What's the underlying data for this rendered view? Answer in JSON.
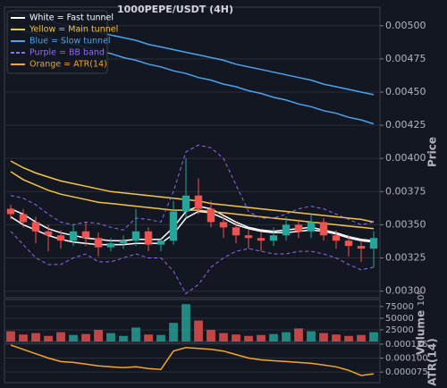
{
  "chart_data": [
    {
      "type": "candlestick",
      "title": "1000PEPE/USDT (4H)",
      "y_label": "Price",
      "ylim": [
        0.00295,
        0.00514
      ],
      "yticks": [
        {
          "value": 0.003,
          "label": "0.00300"
        },
        {
          "value": 0.00325,
          "label": "0.00325"
        },
        {
          "value": 0.0035,
          "label": "0.00350"
        },
        {
          "value": 0.00375,
          "label": "0.00375"
        },
        {
          "value": 0.004,
          "label": "0.00400"
        },
        {
          "value": 0.00425,
          "label": "0.00425"
        },
        {
          "value": 0.0045,
          "label": "0.00450"
        },
        {
          "value": 0.00475,
          "label": "0.00475"
        },
        {
          "value": 0.005,
          "label": "0.00500"
        }
      ],
      "grid": true,
      "up_color": "#26a69a",
      "down_color": "#ef5350",
      "legend": "upper left",
      "open": [
        0.00362,
        0.00358,
        0.00352,
        0.00345,
        0.00342,
        0.00338,
        0.00345,
        0.0034,
        0.00333,
        0.00336,
        0.00338,
        0.00345,
        0.00335,
        0.00338,
        0.0036,
        0.00372,
        0.00362,
        0.00352,
        0.00348,
        0.00342,
        0.0034,
        0.00338,
        0.00342,
        0.0035,
        0.00345,
        0.00352,
        0.00342,
        0.00338,
        0.00334,
        0.00332
      ],
      "high": [
        0.00365,
        0.00362,
        0.00356,
        0.0035,
        0.00346,
        0.0035,
        0.00352,
        0.00344,
        0.0034,
        0.00342,
        0.00362,
        0.00348,
        0.0034,
        0.00368,
        0.004,
        0.00385,
        0.00368,
        0.00356,
        0.00352,
        0.00346,
        0.00344,
        0.00348,
        0.00356,
        0.00354,
        0.00358,
        0.00355,
        0.00346,
        0.00342,
        0.00338,
        0.00345
      ],
      "low": [
        0.00354,
        0.00348,
        0.00336,
        0.0033,
        0.00332,
        0.00334,
        0.00334,
        0.00326,
        0.0033,
        0.00332,
        0.00334,
        0.0033,
        0.0033,
        0.00335,
        0.00355,
        0.00358,
        0.00348,
        0.0034,
        0.00336,
        0.00332,
        0.0033,
        0.00334,
        0.00338,
        0.0034,
        0.0034,
        0.00338,
        0.00332,
        0.00326,
        0.00322,
        0.00318
      ],
      "close": [
        0.00358,
        0.00352,
        0.00345,
        0.00342,
        0.00338,
        0.00345,
        0.0034,
        0.00333,
        0.00336,
        0.00338,
        0.00345,
        0.00335,
        0.00338,
        0.0036,
        0.00372,
        0.00362,
        0.00352,
        0.00348,
        0.00342,
        0.0034,
        0.00338,
        0.00342,
        0.0035,
        0.00345,
        0.00352,
        0.00342,
        0.00338,
        0.00334,
        0.00332,
        0.0034
      ],
      "series": [
        {
          "name": "White = Fast tunnel",
          "color": "#ffffff",
          "dashed": false,
          "upper": [
            0.00362,
            0.00358,
            0.00352,
            0.00347,
            0.00344,
            0.00342,
            0.0034,
            0.00339,
            0.00338,
            0.00338,
            0.00339,
            0.00339,
            0.00339,
            0.00348,
            0.0036,
            0.00364,
            0.00362,
            0.00357,
            0.00352,
            0.00348,
            0.00346,
            0.00345,
            0.00346,
            0.00347,
            0.00348,
            0.00346,
            0.00344,
            0.00341,
            0.00339,
            0.00338
          ],
          "lower": [
            0.00356,
            0.0035,
            0.00346,
            0.00342,
            0.00339,
            0.00337,
            0.00336,
            0.00335,
            0.00335,
            0.00335,
            0.00336,
            0.00336,
            0.00336,
            0.00343,
            0.00355,
            0.0036,
            0.00359,
            0.00355,
            0.0035,
            0.00347,
            0.00345,
            0.00344,
            0.00344,
            0.00345,
            0.00346,
            0.00345,
            0.00343,
            0.0034,
            0.00338,
            0.00337
          ]
        },
        {
          "name": "Yellow = Main tunnel",
          "color": "#f5c542",
          "dashed": false,
          "upper": [
            0.00398,
            0.00393,
            0.00389,
            0.00386,
            0.00383,
            0.00381,
            0.00379,
            0.00377,
            0.00375,
            0.00374,
            0.00373,
            0.00372,
            0.00371,
            0.0037,
            0.00369,
            0.00368,
            0.00366,
            0.00365,
            0.00364,
            0.00363,
            0.00362,
            0.00361,
            0.0036,
            0.00359,
            0.00358,
            0.00357,
            0.00356,
            0.00355,
            0.00354,
            0.00352
          ],
          "lower": [
            0.0039,
            0.00384,
            0.0038,
            0.00376,
            0.00373,
            0.00371,
            0.00369,
            0.00367,
            0.00366,
            0.00365,
            0.00364,
            0.00363,
            0.00362,
            0.00361,
            0.00361,
            0.00361,
            0.0036,
            0.00359,
            0.00358,
            0.00357,
            0.00356,
            0.00355,
            0.00354,
            0.00353,
            0.00352,
            0.00351,
            0.0035,
            0.00349,
            0.00348,
            0.00347
          ]
        },
        {
          "name": "Blue = Slow tunnel",
          "color": "#4aa3f0",
          "dashed": false,
          "upper": [
            0.0051,
            0.00508,
            0.00506,
            0.00504,
            0.00501,
            0.00499,
            0.00497,
            0.00495,
            0.00493,
            0.00491,
            0.00489,
            0.00486,
            0.00484,
            0.00482,
            0.0048,
            0.00478,
            0.00476,
            0.00474,
            0.00471,
            0.00469,
            0.00467,
            0.00465,
            0.00463,
            0.00461,
            0.00459,
            0.00456,
            0.00454,
            0.00452,
            0.0045,
            0.00448
          ],
          "lower": [
            0.00499,
            0.00496,
            0.00494,
            0.00491,
            0.00489,
            0.00486,
            0.00484,
            0.00481,
            0.00479,
            0.00476,
            0.00474,
            0.00471,
            0.00469,
            0.00466,
            0.00464,
            0.00461,
            0.00459,
            0.00456,
            0.00454,
            0.00451,
            0.00449,
            0.00446,
            0.00444,
            0.00441,
            0.00439,
            0.00436,
            0.00434,
            0.00431,
            0.00429,
            0.00426
          ]
        },
        {
          "name": "Purple = BB band",
          "color": "#8f6cf0",
          "dashed": true,
          "upper": [
            0.00372,
            0.0037,
            0.00365,
            0.00358,
            0.00352,
            0.0035,
            0.00352,
            0.00351,
            0.00348,
            0.00346,
            0.00355,
            0.00354,
            0.00352,
            0.00375,
            0.00405,
            0.0041,
            0.00408,
            0.004,
            0.0038,
            0.0036,
            0.00355,
            0.00355,
            0.00358,
            0.00362,
            0.00364,
            0.00362,
            0.00358,
            0.00354,
            0.0035,
            0.00352
          ],
          "lower": [
            0.00345,
            0.00335,
            0.00325,
            0.0032,
            0.0032,
            0.00325,
            0.00328,
            0.00322,
            0.00322,
            0.00325,
            0.00328,
            0.00325,
            0.00325,
            0.00315,
            0.00298,
            0.00305,
            0.00318,
            0.00325,
            0.0033,
            0.00332,
            0.0033,
            0.00328,
            0.00328,
            0.0033,
            0.0033,
            0.00328,
            0.00325,
            0.0032,
            0.00316,
            0.00318
          ]
        },
        {
          "name": "Orange = ATR(14)",
          "color": "#f5a623",
          "dashed": false
        }
      ]
    },
    {
      "type": "bar",
      "y_label": "Volume",
      "offset_label": "10⁶",
      "ylim": [
        0,
        90000
      ],
      "yticks": [
        25000,
        50000,
        75000
      ],
      "grid": true,
      "values": [
        22000,
        15000,
        18000,
        12000,
        20000,
        14000,
        16000,
        25000,
        18000,
        12000,
        30000,
        15000,
        14000,
        40000,
        80000,
        45000,
        25000,
        18000,
        15000,
        12000,
        14000,
        16000,
        20000,
        28000,
        22000,
        18000,
        15000,
        12000,
        14000,
        20000
      ]
    },
    {
      "type": "line",
      "y_label": "ATR(14)",
      "color": "#f5a623",
      "ylim": [
        5.6e-05,
        0.0001265
      ],
      "yticks": [
        {
          "value": 7.5e-05,
          "label": "0.000075"
        },
        {
          "value": 0.0001,
          "label": "0.000100"
        },
        {
          "value": 0.000125,
          "label": "0.000125"
        }
      ],
      "grid": true,
      "values": [
        0.0001234,
        0.0001156,
        0.0001078,
        0.0001,
        9.38e-05,
        9.22e-05,
        8.91e-05,
        8.59e-05,
        8.44e-05,
        8.28e-05,
        8.44e-05,
        8.13e-05,
        7.97e-05,
        0.0001125,
        0.0001188,
        0.0001172,
        0.0001156,
        0.0001125,
        0.0001063,
        0.0001,
        9.69e-05,
        9.53e-05,
        9.38e-05,
        9.22e-05,
        9.06e-05,
        8.75e-05,
        8.44e-05,
        7.81e-05,
        6.88e-05,
        7.19e-05
      ]
    }
  ]
}
